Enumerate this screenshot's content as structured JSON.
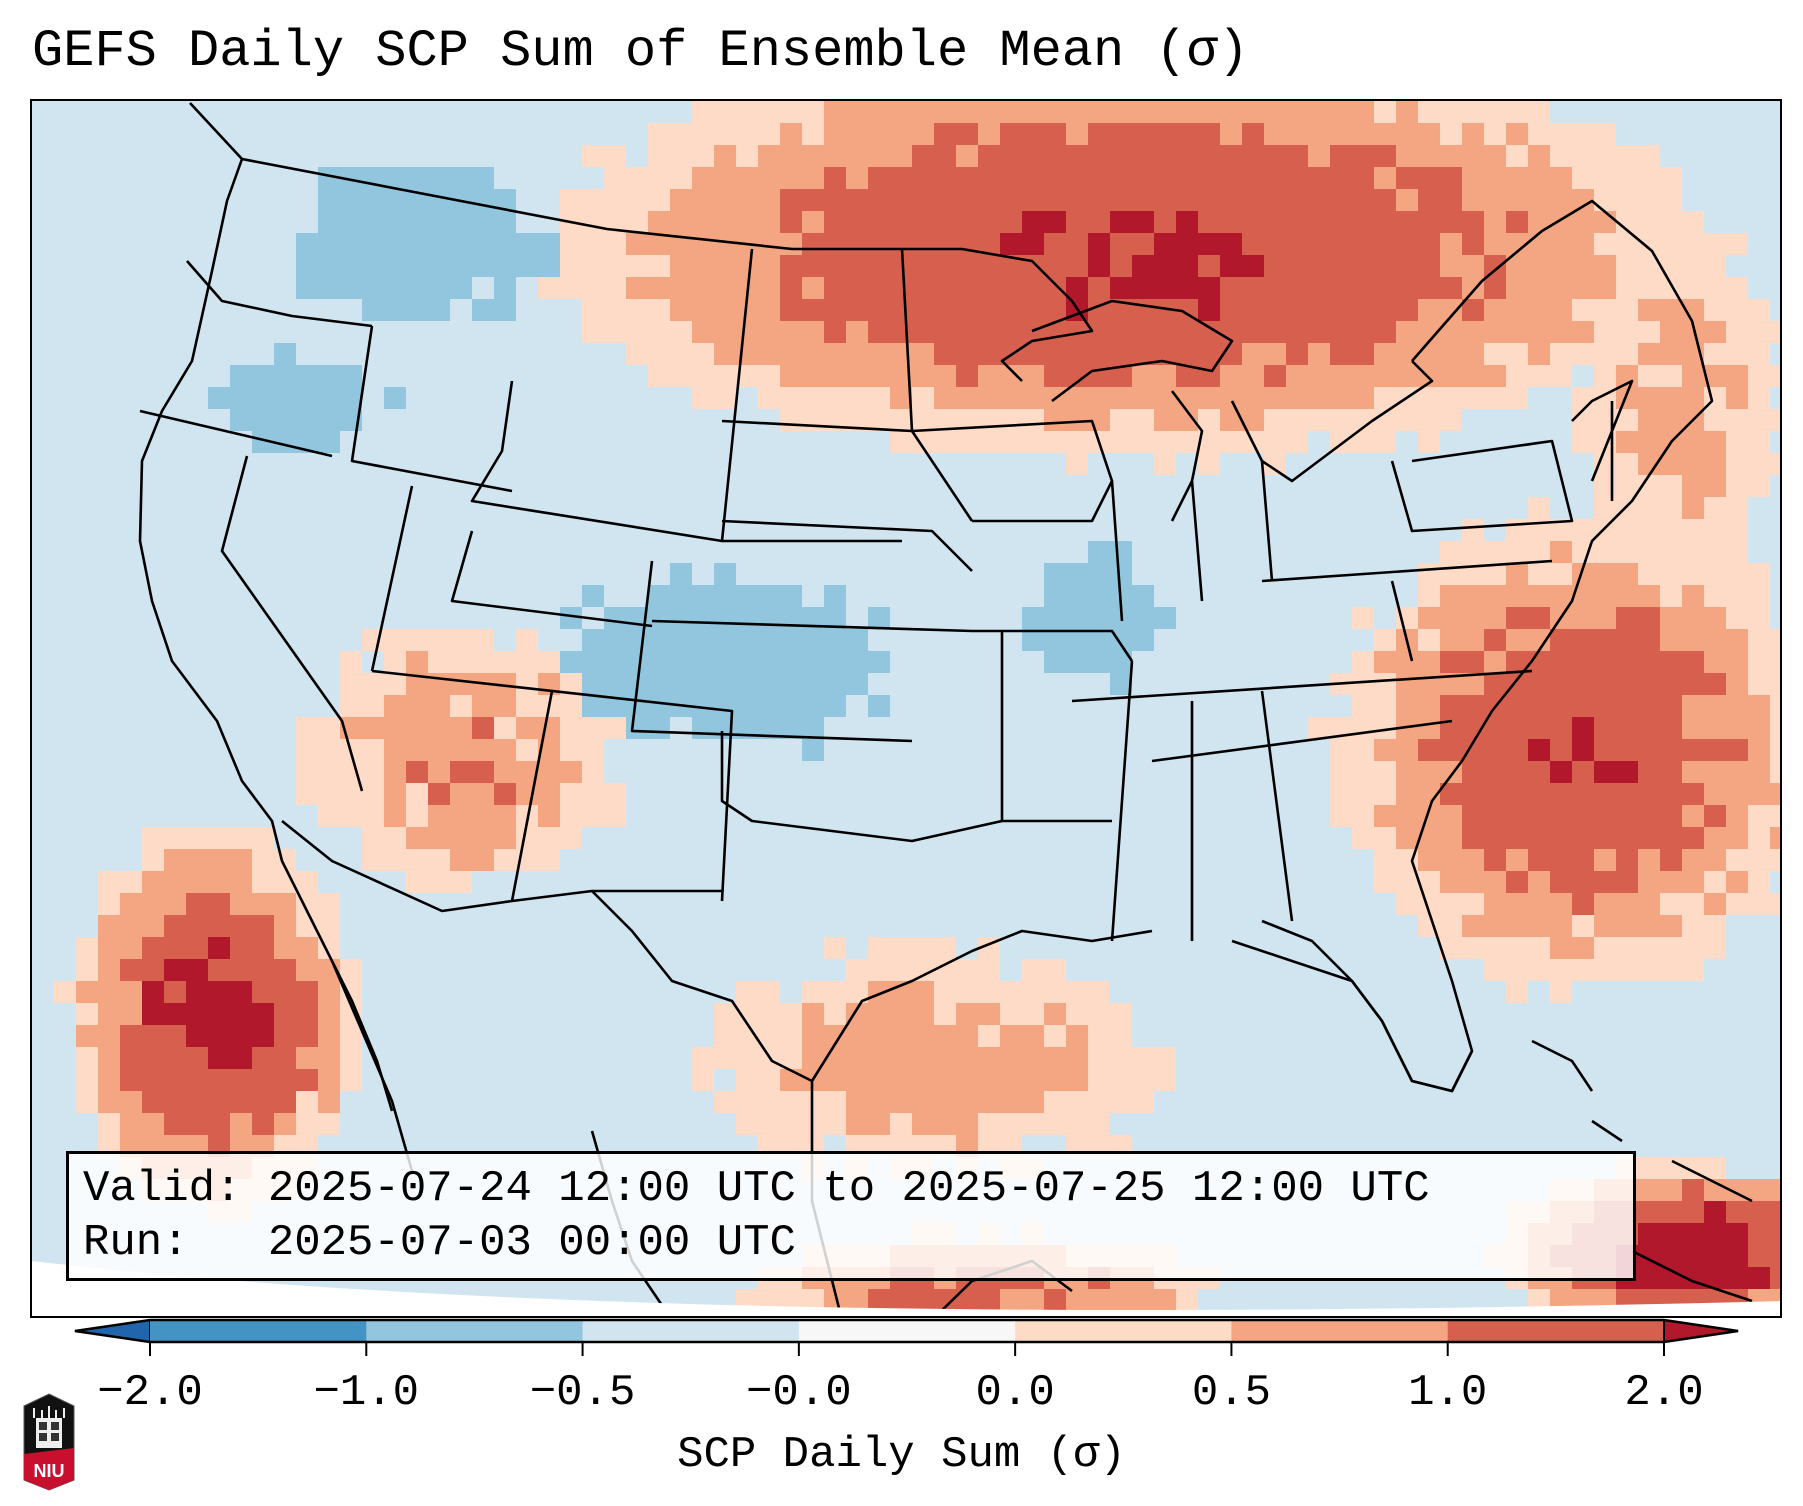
{
  "title": "GEFS Daily SCP Sum of Ensemble Mean (σ)",
  "info_box": {
    "valid_label": "Valid:",
    "valid_value": "2025-07-24 12:00 UTC to 2025-07-25 12:00 UTC",
    "run_label": "Run:",
    "run_value": "2025-07-03 00:00 UTC"
  },
  "colorbar": {
    "label": "SCP Daily Sum (σ)",
    "ticks": [
      "−2.0",
      "−1.0",
      "−0.5",
      "−0.0",
      "0.0",
      "0.5",
      "1.0",
      "2.0"
    ],
    "bins": [
      {
        "range": "< -2.0",
        "color": "#2166ac"
      },
      {
        "range": "-2.0 to -1.0",
        "color": "#4393c3"
      },
      {
        "range": "-1.0 to -0.5",
        "color": "#92c5de"
      },
      {
        "range": "-0.5 to -0.0",
        "color": "#d1e5f0"
      },
      {
        "range": "-0.0 to 0.0",
        "color": "#f7f7f7"
      },
      {
        "range": "0.0 to 0.5",
        "color": "#fddbc7"
      },
      {
        "range": "0.5 to 1.0",
        "color": "#f4a582"
      },
      {
        "range": "1.0 to 2.0",
        "color": "#d6604d"
      },
      {
        "range": "> 2.0",
        "color": "#b2182b"
      }
    ],
    "extend": "both"
  },
  "logo": {
    "text": "NIU",
    "name": "niu-logo"
  },
  "map": {
    "projection": "Lambert Conformal",
    "region": "CONUS",
    "features": [
      "coastlines",
      "state borders",
      "country borders",
      "great lakes"
    ],
    "background_color": "#d1e5f0",
    "field_regions": [
      {
        "area": "Southern Canada / Upper Midwest",
        "category": "1.0 to 2.0",
        "color": "#d6604d"
      },
      {
        "area": "Quebec / Ontario",
        "category": "0.5 to 1.0",
        "color": "#f4a582"
      },
      {
        "area": "Western Atlantic",
        "category": "0.5 to 1.0",
        "color": "#f4a582"
      },
      {
        "area": "Baja California / Eastern Pacific",
        "category": "1.0 to 2.0",
        "color": "#d6604d"
      },
      {
        "area": "Cuba / Caribbean",
        "category": "> 2.0",
        "color": "#b2182b"
      },
      {
        "area": "Southwest US",
        "category": "0.0 to 0.5",
        "color": "#fddbc7"
      },
      {
        "area": "Central Plains",
        "category": "-1.0 to -0.5",
        "color": "#92c5de"
      },
      {
        "area": "Northern Rockies",
        "category": "-1.0 to -0.5",
        "color": "#92c5de"
      },
      {
        "area": "Gulf of Mexico",
        "category": "0.0 to 0.5",
        "color": "#fddbc7"
      }
    ]
  }
}
